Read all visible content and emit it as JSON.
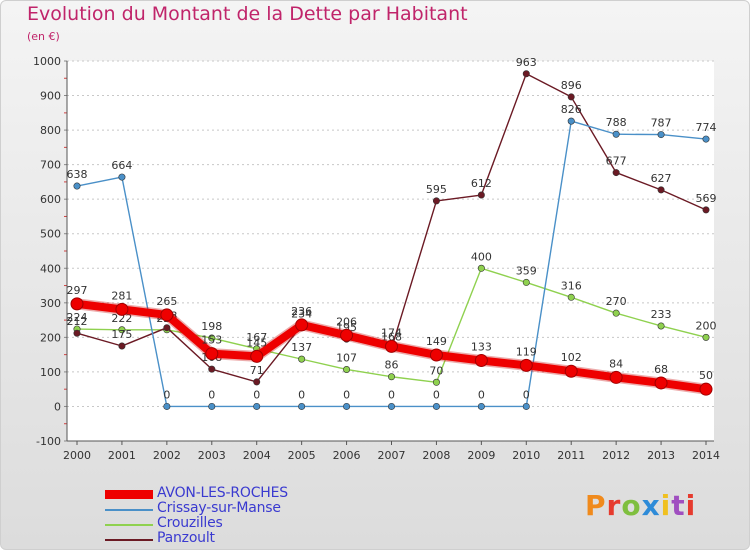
{
  "chart_data": {
    "type": "line",
    "title": "Evolution du Montant de la Dette par Habitant",
    "subtitle": "(en €)",
    "ylim": [
      -100,
      1000
    ],
    "yticks": [
      -100,
      0,
      100,
      200,
      300,
      400,
      500,
      600,
      700,
      800,
      900,
      1000
    ],
    "x": [
      2000,
      2001,
      2002,
      2003,
      2004,
      2005,
      2006,
      2007,
      2008,
      2009,
      2010,
      2011,
      2012,
      2013,
      2014
    ],
    "grid": "dotted horizontal",
    "legend_position": "bottom-left",
    "series": [
      {
        "name": "Crouzilles",
        "color": "#8fd14f",
        "values": [
          224,
          222,
          222,
          198,
          167,
          137,
          107,
          86,
          70,
          400,
          359,
          316,
          270,
          233,
          200
        ]
      },
      {
        "name": "Panzoult",
        "color": "#6b1a24",
        "values": [
          212,
          175,
          228,
          108,
          71,
          234,
          195,
          168,
          595,
          612,
          963,
          896,
          677,
          627,
          569
        ]
      },
      {
        "name": "Crissay-sur-Manse",
        "color": "#4a90c8",
        "values": [
          638,
          664,
          0,
          0,
          0,
          0,
          0,
          0,
          0,
          0,
          0,
          826,
          788,
          787,
          774
        ]
      },
      {
        "name": "AVON-LES-ROCHES",
        "color": "#ee0000",
        "values": [
          297,
          281,
          265,
          153,
          145,
          236,
          206,
          174,
          149,
          133,
          119,
          102,
          84,
          68,
          50
        ]
      }
    ]
  },
  "legend": {
    "items": [
      {
        "label": "AVON-LES-ROCHES",
        "color": "#ee0000"
      },
      {
        "label": "Crissay-sur-Manse",
        "color": "#4a90c8"
      },
      {
        "label": "Crouzilles",
        "color": "#8fd14f"
      },
      {
        "label": "Panzoult",
        "color": "#6b1a24"
      }
    ]
  },
  "logo": {
    "text": "Proxiti"
  }
}
